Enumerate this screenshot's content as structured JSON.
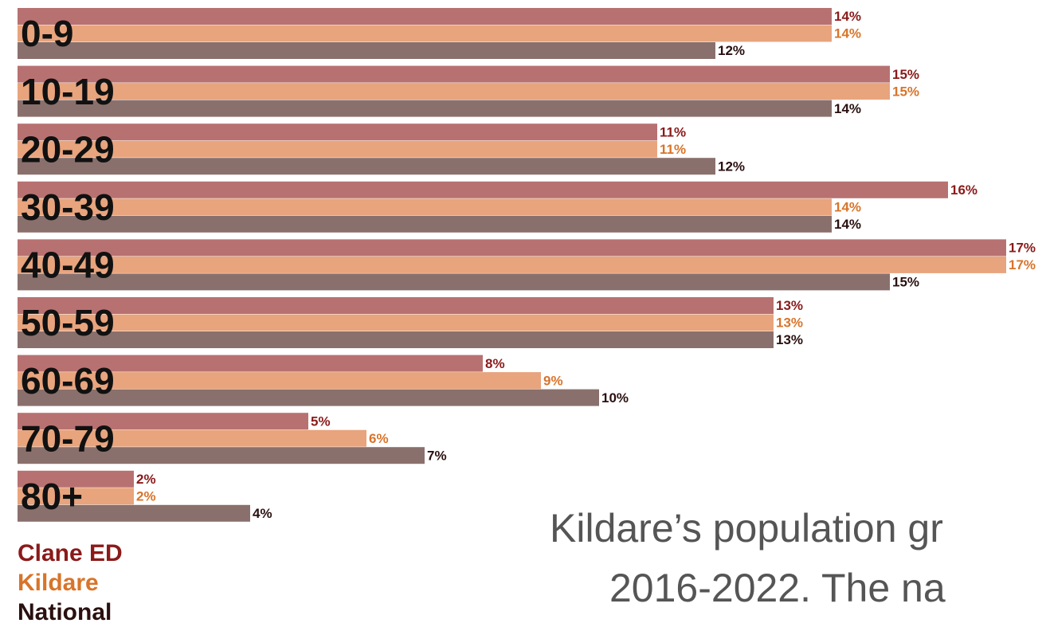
{
  "chart_data": {
    "type": "hbar",
    "categories": [
      "0-9",
      "10-19",
      "20-29",
      "30-39",
      "40-49",
      "50-59",
      "60-69",
      "70-79",
      "80+"
    ],
    "series": [
      {
        "name": "Clane ED",
        "color": "#b87171",
        "label_color": "#8b1a1a",
        "values": [
          14,
          15,
          11,
          16,
          17,
          13,
          8,
          5,
          2
        ],
        "value_labels": [
          "14%",
          "15%",
          "11%",
          "16%",
          "17%",
          "13%",
          "8%",
          "5%",
          "2%"
        ]
      },
      {
        "name": "Kildare",
        "color": "#e8a47d",
        "label_color": "#d8742a",
        "values": [
          14,
          15,
          11,
          14,
          17,
          13,
          9,
          6,
          2
        ],
        "value_labels": [
          "14%",
          "15%",
          "11%",
          "14%",
          "17%",
          "13%",
          "9%",
          "6%",
          "2%"
        ]
      },
      {
        "name": "National",
        "color": "#8a706c",
        "label_color": "#2a1010",
        "values": [
          12,
          14,
          12,
          14,
          15,
          13,
          10,
          7,
          4
        ],
        "value_labels": [
          "12%",
          "14%",
          "12%",
          "14%",
          "15%",
          "13%",
          "10%",
          "7%",
          "4%"
        ]
      }
    ],
    "annotations": [
      "Kildare’s population gr",
      "2016-2022. The na"
    ]
  }
}
